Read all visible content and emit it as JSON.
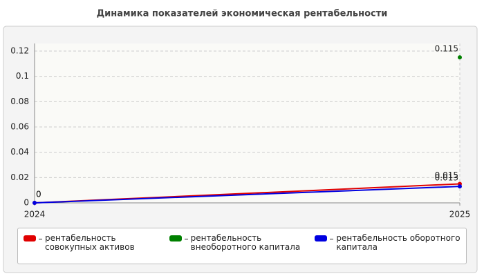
{
  "chart_data": {
    "type": "line",
    "title": "Динамика показателей экономическая рентабельности",
    "x": [
      2024,
      2025
    ],
    "xlim": [
      2024,
      2025
    ],
    "xticks": [
      2024,
      2025
    ],
    "ylim": [
      0,
      0.126
    ],
    "yticks": [
      0,
      0.02,
      0.04,
      0.06,
      0.08,
      0.1,
      0.12
    ],
    "grid": true,
    "series": [
      {
        "name": "рентабельность совокупных активов",
        "color": "#e00000",
        "values": [
          0,
          0.015
        ]
      },
      {
        "name": "рентабельность внеоборотного капитала",
        "color": "#008000",
        "values": [
          null,
          0.115
        ]
      },
      {
        "name": "рентабельность оборотного капитала",
        "color": "#0000e0",
        "values": [
          0,
          0.013
        ]
      }
    ]
  }
}
